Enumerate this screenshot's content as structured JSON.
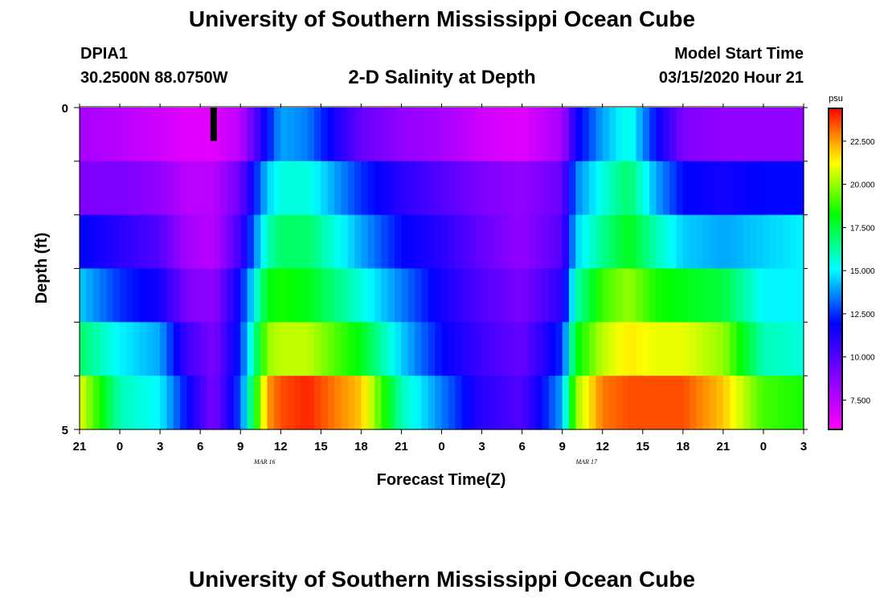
{
  "header": {
    "title": "University of Southern Mississippi Ocean Cube",
    "station_id": "DPIA1",
    "station_location": "30.2500N 88.0750W",
    "chart_title": "2-D Salinity at Depth",
    "model_start_label": "Model Start Time",
    "model_start_time": "03/15/2020 Hour 21"
  },
  "footer": {
    "title": "University of Southern Mississippi Ocean Cube"
  },
  "chart_data": {
    "type": "heatmap",
    "title": "2-D Salinity at Depth",
    "xlabel": "Forecast Time(Z)",
    "ylabel": "Depth (ft)",
    "x_hours": [
      0,
      54
    ],
    "x_tick_labels": [
      "21",
      "0",
      "3",
      "6",
      "9",
      "12",
      "15",
      "18",
      "21",
      "0",
      "3",
      "6",
      "9",
      "12",
      "15",
      "18",
      "21",
      "0",
      "3"
    ],
    "date_labels": [
      {
        "label": "MAR 16",
        "hour": 15
      },
      {
        "label": "MAR 17",
        "hour": 39
      }
    ],
    "y_range": [
      0,
      5
    ],
    "y_tick_labels": [
      "0",
      "5"
    ],
    "depth_levels": 5,
    "colorbar": {
      "unit": "psu",
      "min": 5.8,
      "max": 24.4,
      "tick_labels": [
        "7.500",
        "10.000",
        "12.500",
        "15.000",
        "17.500",
        "20.000",
        "22.500"
      ],
      "tick_values": [
        7.5,
        10.0,
        12.5,
        15.0,
        17.5,
        20.0,
        22.5
      ]
    },
    "missing_marker": {
      "hour": 10,
      "layer": 0
    },
    "times": [
      0,
      3,
      6,
      8,
      10,
      12,
      14,
      15,
      17,
      21,
      24,
      27,
      30,
      33,
      36,
      37,
      39,
      41,
      43,
      45,
      48,
      51,
      54
    ],
    "salinity_layers": [
      [
        8,
        7.5,
        7,
        6.5,
        6.5,
        7.5,
        12,
        14,
        13.5,
        9.5,
        8.5,
        8,
        7,
        6.5,
        8,
        11.5,
        14,
        15.5,
        12,
        9,
        8.5,
        8.5,
        8.5
      ],
      [
        9,
        9,
        8.5,
        7.5,
        7.5,
        9.5,
        14.5,
        15.5,
        15.5,
        12.5,
        11,
        10,
        9,
        8.5,
        9.5,
        13.5,
        15.5,
        17,
        14,
        12,
        11.5,
        12,
        12
      ],
      [
        12,
        11,
        10,
        8,
        7.5,
        10.5,
        16,
        17,
        17,
        14,
        12,
        11,
        9.5,
        8.5,
        10,
        14.5,
        16.5,
        18,
        16,
        14.5,
        14,
        14.5,
        15
      ],
      [
        14.5,
        12.5,
        11.5,
        9,
        8.5,
        12,
        18,
        18.5,
        18,
        15.5,
        13.5,
        11.5,
        10,
        9,
        11,
        16,
        19,
        20,
        18.5,
        18,
        17.5,
        15,
        15
      ],
      [
        17,
        15,
        14,
        10.5,
        9,
        12.5,
        20,
        20.5,
        20.5,
        18,
        14.5,
        12,
        10.5,
        9.5,
        12.5,
        18,
        20.5,
        21.5,
        21,
        21,
        20,
        16,
        15.5
      ],
      [
        21,
        16,
        15,
        12,
        9,
        13,
        22.5,
        23.5,
        24,
        22,
        16,
        13.5,
        11,
        10,
        14,
        20,
        23,
        23.5,
        23.5,
        23.5,
        22,
        19,
        18.5
      ]
    ]
  }
}
